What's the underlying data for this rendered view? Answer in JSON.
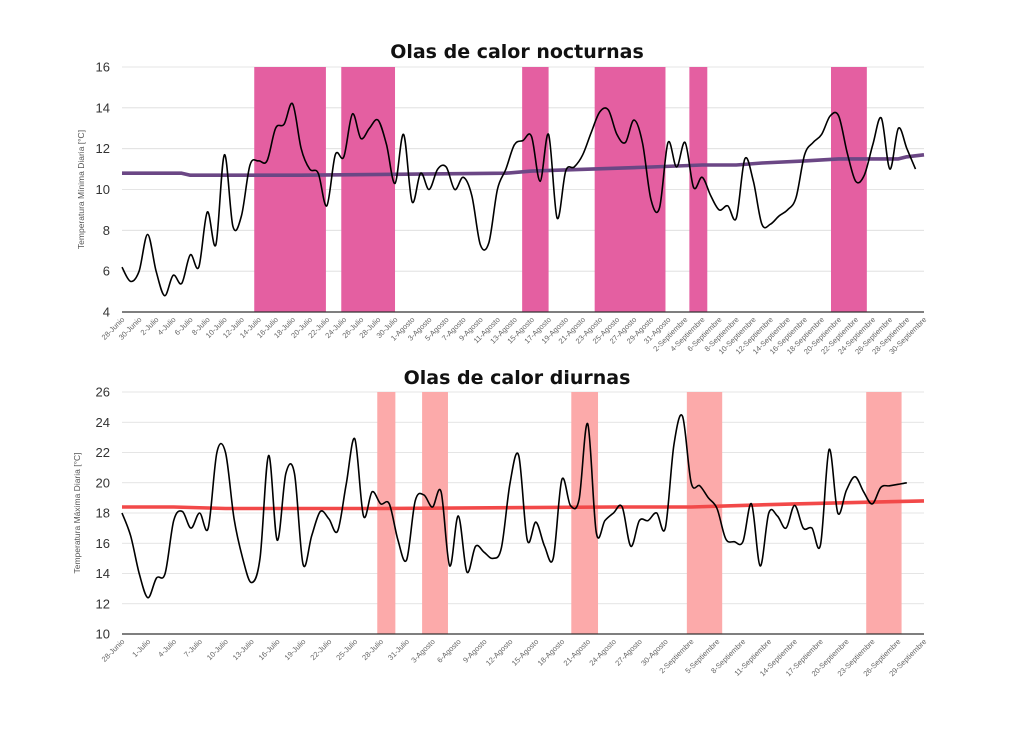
{
  "chart_data": [
    {
      "type": "line",
      "title": "Olas de calor nocturnas",
      "ylabel": "Temperatura Mínima Diaria [°C]",
      "ylim": [
        4,
        16
      ],
      "yticks": [
        4,
        6,
        8,
        10,
        12,
        14,
        16
      ],
      "grid": true,
      "colors": {
        "band": "#e45fa1",
        "threshold": "#6b4785",
        "series": "#000000"
      },
      "x_start_day": 0,
      "x_end_day": 94,
      "tick_labels": [
        "28-Junio",
        "30-Junio",
        "2-Julio",
        "4-Julio",
        "6-Julio",
        "8-Julio",
        "10-Julio",
        "12-Julio",
        "14-Julio",
        "16-Julio",
        "18-Julio",
        "20-Julio",
        "22-Julio",
        "24-Julio",
        "26-Julio",
        "28-Julio",
        "30-Julio",
        "1-Agosto",
        "3-Agosto",
        "5-Agosto",
        "7-Agosto",
        "9-Agosto",
        "11-Agosto",
        "13-Agosto",
        "15-Agosto",
        "17-Agosto",
        "19-Agosto",
        "21-Agosto",
        "23-Agosto",
        "25-Agosto",
        "27-Agosto",
        "29-Agosto",
        "31-Agosto",
        "2-Septiembre",
        "4-Septiembre",
        "6-Septiembre",
        "8-Septiembre",
        "10-Septiembre",
        "12-Septiembre",
        "14-Septiembre",
        "16-Septiembre",
        "18-Septiembre",
        "20-Septiembre",
        "22-Septiembre",
        "24-Septiembre",
        "26-Septiembre",
        "28-Septiembre",
        "30-Septiembre"
      ],
      "tick_days": [
        0,
        2,
        4,
        6,
        8,
        10,
        12,
        14,
        16,
        18,
        20,
        22,
        24,
        26,
        28,
        30,
        32,
        34,
        36,
        38,
        40,
        42,
        44,
        46,
        48,
        50,
        52,
        54,
        56,
        58,
        60,
        62,
        64,
        66,
        68,
        70,
        72,
        74,
        76,
        78,
        80,
        82,
        84,
        86,
        88,
        90,
        92,
        94
      ],
      "heatwave_bands": [
        [
          15.5,
          23.9
        ],
        [
          25.7,
          32
        ],
        [
          46.9,
          50
        ],
        [
          55.4,
          63.7
        ],
        [
          66.5,
          68.6
        ],
        [
          83.1,
          87.3
        ]
      ],
      "threshold": {
        "days": [
          0,
          7,
          8,
          21,
          45,
          48,
          55,
          62,
          68,
          72,
          75,
          80,
          84,
          91,
          92,
          94
        ],
        "values": [
          10.8,
          10.8,
          10.7,
          10.7,
          10.8,
          10.9,
          11.0,
          11.1,
          11.2,
          11.2,
          11.3,
          11.4,
          11.5,
          11.5,
          11.6,
          11.7
        ]
      },
      "series": [
        {
          "days": [
            0,
            1,
            2,
            3,
            4,
            5,
            6,
            7,
            8,
            9,
            10,
            11,
            12,
            13,
            14,
            15,
            16,
            17,
            18,
            19,
            20,
            21,
            22,
            23,
            24,
            25,
            26,
            27,
            28,
            29,
            30,
            31,
            32,
            33,
            34,
            35,
            36,
            37,
            38,
            39,
            40,
            41,
            42,
            43,
            44,
            45,
            46,
            47,
            48,
            49,
            50,
            51,
            52,
            53,
            54,
            55,
            56,
            57,
            58,
            59,
            60,
            61,
            62,
            63,
            64,
            65,
            66,
            67,
            68,
            69,
            70,
            71,
            72,
            73,
            74,
            75,
            76,
            77,
            78,
            79,
            80,
            81,
            82,
            83,
            84,
            85,
            86,
            87,
            88,
            89,
            90,
            91,
            92,
            93
          ],
          "values": [
            6.2,
            5.5,
            6.0,
            7.8,
            6.0,
            4.8,
            5.8,
            5.4,
            6.8,
            6.2,
            8.9,
            7.3,
            11.7,
            8.2,
            8.7,
            11.2,
            11.4,
            11.4,
            13.0,
            13.2,
            14.2,
            12.0,
            11.0,
            10.8,
            9.2,
            11.7,
            11.6,
            13.7,
            12.5,
            13.0,
            13.4,
            12.2,
            10.3,
            12.7,
            9.4,
            10.8,
            10.0,
            11.0,
            11.1,
            10.0,
            10.6,
            9.7,
            7.3,
            7.4,
            10.0,
            11.0,
            12.2,
            12.4,
            12.6,
            10.4,
            12.7,
            8.6,
            10.9,
            11.1,
            11.7,
            12.8,
            13.8,
            13.9,
            12.7,
            12.3,
            13.4,
            12.3,
            9.5,
            9.1,
            12.3,
            11.1,
            12.3,
            10.1,
            10.6,
            9.7,
            9.0,
            9.2,
            8.6,
            11.5,
            10.4,
            8.3,
            8.3,
            8.7,
            9.0,
            9.6,
            11.7,
            12.3,
            12.7,
            13.6,
            13.6,
            11.8,
            10.4,
            10.7,
            12.2,
            13.5,
            11.0,
            13.0,
            12.0,
            11.0
          ]
        }
      ]
    },
    {
      "type": "line",
      "title": "Olas de calor diurnas",
      "ylabel": "Temperatura Máxima Diaria [°C]",
      "ylim": [
        10,
        26
      ],
      "yticks": [
        10,
        12,
        14,
        16,
        18,
        20,
        22,
        24,
        26
      ],
      "grid": true,
      "colors": {
        "band": "#fcaaaa",
        "threshold": "#f24949",
        "series": "#000000"
      },
      "x_start_day": 0,
      "x_end_day": 93,
      "tick_labels": [
        "28-Junio",
        "1-Julio",
        "4-Julio",
        "7-Julio",
        "10-Julio",
        "13-Julio",
        "16-Julio",
        "19-Julio",
        "22-Julio",
        "25-Julio",
        "28-Julio",
        "31-Julio",
        "3-Agosto",
        "6-Agosto",
        "9-Agosto",
        "12-Agosto",
        "15-Agosto",
        "18-Agosto",
        "21-Agosto",
        "24-Agosto",
        "27-Agosto",
        "30-Agosto",
        "2-Septiembre",
        "5-Septiembre",
        "8-Septiembre",
        "11-Septiembre",
        "14-Septiembre",
        "17-Septiembre",
        "20-Septiembre",
        "23-Septiembre",
        "26-Septiembre",
        "29-Septiembre"
      ],
      "tick_days": [
        0,
        3,
        6,
        9,
        12,
        15,
        18,
        21,
        24,
        27,
        30,
        33,
        36,
        39,
        42,
        45,
        48,
        51,
        54,
        57,
        60,
        63,
        66,
        69,
        72,
        75,
        78,
        81,
        84,
        87,
        90,
        93
      ],
      "heatwave_bands": [
        [
          29.6,
          31.7
        ],
        [
          34.8,
          37.8
        ],
        [
          52.1,
          55.2
        ],
        [
          65.5,
          69.6
        ],
        [
          86.3,
          90.4
        ]
      ],
      "threshold": {
        "days": [
          0,
          6,
          12,
          30,
          57,
          66,
          72,
          78,
          93
        ],
        "values": [
          18.4,
          18.4,
          18.3,
          18.3,
          18.4,
          18.4,
          18.5,
          18.6,
          18.8
        ]
      },
      "series": [
        {
          "days": [
            0,
            1,
            2,
            3,
            4,
            5,
            6,
            7,
            8,
            9,
            10,
            11,
            12,
            13,
            14,
            15,
            16,
            17,
            18,
            19,
            20,
            21,
            22,
            23,
            24,
            25,
            26,
            27,
            28,
            29,
            30,
            31,
            32,
            33,
            34,
            35,
            36,
            37,
            38,
            39,
            40,
            41,
            42,
            43,
            44,
            45,
            46,
            47,
            48,
            49,
            50,
            51,
            52,
            53,
            54,
            55,
            56,
            57,
            58,
            59,
            60,
            61,
            62,
            63,
            64,
            65,
            66,
            67,
            68,
            69,
            70,
            71,
            72,
            73,
            74,
            75,
            76,
            77,
            78,
            79,
            80,
            81,
            82,
            83,
            84,
            85,
            86,
            87,
            88,
            89,
            90,
            91
          ],
          "values": [
            18.0,
            16.5,
            14.0,
            12.4,
            13.7,
            14.0,
            17.5,
            18.1,
            17.0,
            18.0,
            17.0,
            22.0,
            22.0,
            17.6,
            15.0,
            13.4,
            15.0,
            21.8,
            16.2,
            20.6,
            20.6,
            14.6,
            16.5,
            18.1,
            17.6,
            16.8,
            19.9,
            22.9,
            17.8,
            19.4,
            18.6,
            18.6,
            16.2,
            14.9,
            18.8,
            19.2,
            18.4,
            19.4,
            14.5,
            17.8,
            14.1,
            15.8,
            15.4,
            15.0,
            15.7,
            20.0,
            21.8,
            16.2,
            17.4,
            15.8,
            15.0,
            20.2,
            18.5,
            18.9,
            23.9,
            16.7,
            17.5,
            18.0,
            18.4,
            15.8,
            17.5,
            17.5,
            18.0,
            17.0,
            22.5,
            24.4,
            20.0,
            19.8,
            19.0,
            18.3,
            16.3,
            16.1,
            16.1,
            18.6,
            14.5,
            18.0,
            17.8,
            17.0,
            18.5,
            17.0,
            17.0,
            15.9,
            22.2,
            18.0,
            19.5,
            20.4,
            19.4,
            18.6,
            19.7,
            19.8,
            19.9,
            20.0
          ]
        }
      ]
    }
  ]
}
